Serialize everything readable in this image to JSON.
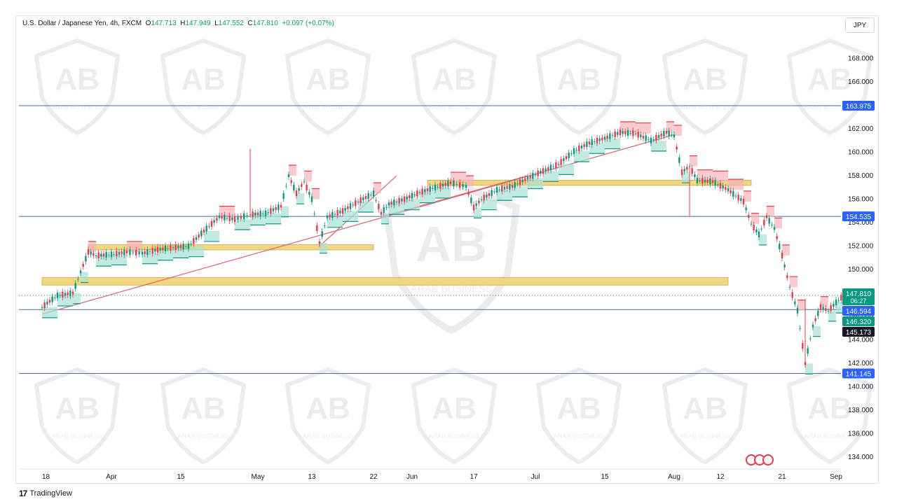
{
  "header": {
    "symbol": "U.S. Dollar / Japanese Yen, 4h, FXCM",
    "open_label": "O",
    "open": "147.713",
    "high_label": "H",
    "high": "147.949",
    "low_label": "L",
    "low": "147.552",
    "close_label": "C",
    "close": "147.810",
    "change": "+0.097 (+0.07%)"
  },
  "currency_button": "JPY",
  "footer": {
    "brand": "TradingView"
  },
  "watermark_text": "ARAB BUSINESS",
  "colors": {
    "up": "#089981",
    "down": "#f23645",
    "hline": "#4a6fa5",
    "zone": "#f5d680",
    "trend": "#e0626e"
  },
  "chart_data": {
    "type": "line",
    "ylim": [
      133,
      170
    ],
    "x_ticks": [
      "18",
      "Apr",
      "15",
      "May",
      "13",
      "22",
      "Jun",
      "17",
      "Jul",
      "15",
      "Aug",
      "12",
      "21",
      "Sep"
    ],
    "y_ticks": [
      "134.000",
      "136.000",
      "138.000",
      "140.000",
      "142.000",
      "144.000",
      "146.000",
      "148.000",
      "150.000",
      "152.000",
      "154.000",
      "156.000",
      "158.000",
      "160.000",
      "162.000",
      "164.000",
      "166.000",
      "168.000"
    ],
    "horizontal_levels": [
      {
        "value": 163.975,
        "label": "163.975"
      },
      {
        "value": 154.535,
        "label": "154.535"
      },
      {
        "value": 146.594,
        "label": "146.594"
      },
      {
        "value": 141.145,
        "label": "141.145"
      }
    ],
    "price_badges": [
      {
        "value": 147.81,
        "label": "147.810",
        "sub": "06:27",
        "color": "#089981"
      },
      {
        "value": 146.594,
        "label": "146.594",
        "color": "#2962ff"
      },
      {
        "value": 146.32,
        "label": "146.320",
        "color": "#089981"
      },
      {
        "value": 145.173,
        "label": "145.173",
        "color": "#131722"
      }
    ],
    "zones": [
      {
        "x_start": 0.03,
        "x_end": 0.92,
        "y_low": 148.8,
        "y_high": 149.2
      },
      {
        "x_start": 0.09,
        "x_end": 0.46,
        "y_low": 151.8,
        "y_high": 152.0
      },
      {
        "x_start": 0.53,
        "x_end": 0.95,
        "y_low": 157.3,
        "y_high": 157.5
      }
    ],
    "trendlines": [
      {
        "x1": 0.03,
        "y1": 146.2,
        "x2": 0.85,
        "y2": 161.5
      },
      {
        "x1": 0.39,
        "y1": 152.0,
        "x2": 0.49,
        "y2": 158.0
      },
      {
        "x1": 0.47,
        "y1": 154.5,
        "x2": 0.66,
        "y2": 158.0
      }
    ],
    "series": [
      {
        "x": [
          0.03,
          0.05,
          0.07,
          0.08,
          0.09,
          0.1,
          0.12,
          0.14,
          0.16,
          0.18,
          0.2,
          0.22,
          0.24,
          0.26,
          0.28,
          0.3,
          0.32,
          0.34,
          0.35,
          0.36,
          0.37,
          0.38,
          0.39,
          0.4,
          0.42,
          0.44,
          0.46,
          0.47,
          0.48,
          0.5,
          0.52,
          0.54,
          0.56,
          0.58,
          0.59,
          0.6,
          0.62,
          0.64,
          0.66,
          0.68,
          0.7,
          0.72,
          0.74,
          0.76,
          0.78,
          0.8,
          0.82,
          0.84,
          0.85,
          0.86,
          0.87,
          0.88,
          0.9,
          0.92,
          0.94,
          0.95,
          0.96,
          0.97,
          0.98,
          0.99,
          1.0,
          1.01,
          1.02,
          1.03,
          1.04,
          1.05,
          1.06,
          1.07
        ],
        "values": [
          146.8,
          147.8,
          148.0,
          149.8,
          151.5,
          151.2,
          151.3,
          151.5,
          151.4,
          151.7,
          151.9,
          152.0,
          153.3,
          154.5,
          154.3,
          154.7,
          154.8,
          155.4,
          158.0,
          156.5,
          157.5,
          156.0,
          152.3,
          154.5,
          155.0,
          155.8,
          156.5,
          154.8,
          155.6,
          156.0,
          156.6,
          157.0,
          157.4,
          157.1,
          155.3,
          156.0,
          156.8,
          157.1,
          157.8,
          158.4,
          159.0,
          160.1,
          160.8,
          161.2,
          161.7,
          161.6,
          161.0,
          161.7,
          161.4,
          158.3,
          158.8,
          157.6,
          157.5,
          156.8,
          155.8,
          153.9,
          153.0,
          154.5,
          153.5,
          151.2,
          148.5,
          146.5,
          142.0,
          145.2,
          146.8,
          146.5,
          147.2,
          147.8
        ]
      }
    ]
  }
}
